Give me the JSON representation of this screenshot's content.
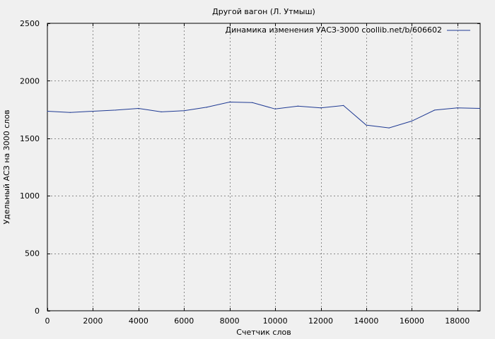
{
  "chart_data": {
    "type": "line",
    "title": "Другой вагон (Л. Утмыш)",
    "xlabel": "Счетчик слов",
    "ylabel": "Удельный АСЗ на 3000 слов",
    "xlim": [
      0,
      19000
    ],
    "ylim": [
      0,
      2500
    ],
    "xticks": [
      0,
      2000,
      4000,
      6000,
      8000,
      10000,
      12000,
      14000,
      16000,
      18000
    ],
    "yticks": [
      0,
      500,
      1000,
      1500,
      2000,
      2500
    ],
    "grid": true,
    "legend_position": "top-right",
    "series": [
      {
        "name": "Динамика изменения УАСЗ-3000 coollib.net/b/606602",
        "color": "#1f3a93",
        "x": [
          0,
          1000,
          2000,
          3000,
          4000,
          5000,
          6000,
          7000,
          8000,
          9000,
          10000,
          11000,
          12000,
          13000,
          14000,
          15000,
          16000,
          17000,
          18000,
          19000
        ],
        "y": [
          1735,
          1725,
          1735,
          1745,
          1760,
          1730,
          1740,
          1770,
          1815,
          1810,
          1755,
          1780,
          1765,
          1785,
          1615,
          1590,
          1650,
          1745,
          1765,
          1760
        ]
      }
    ]
  }
}
